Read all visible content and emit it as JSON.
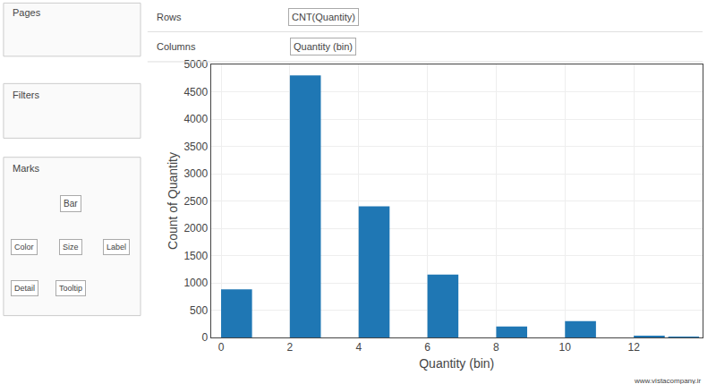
{
  "chart_data": {
    "type": "bar",
    "x": [
      0,
      2,
      4,
      6,
      8,
      10,
      12,
      13
    ],
    "values": [
      880,
      4800,
      2400,
      1150,
      200,
      300,
      30,
      10
    ],
    "xlabel": "Quantity (bin)",
    "ylabel": "Count of Quantity",
    "xlim": [
      -0.3,
      14
    ],
    "xticks": [
      0,
      2,
      4,
      6,
      8,
      10,
      12
    ],
    "ylim": [
      0,
      5000
    ],
    "yticks": [
      0,
      500,
      1000,
      1500,
      2000,
      2500,
      3000,
      3500,
      4000,
      4500,
      5000
    ],
    "grid": true,
    "annotations": [
      "Rows",
      "CNT(Quantity)",
      "Columns",
      "Quantity (bin)",
      "Pages",
      "Filters",
      "Marks",
      "Bar",
      "Color",
      "Size",
      "Label",
      "Detail",
      "Tooltip",
      "www.vistacompany.ir"
    ]
  }
}
